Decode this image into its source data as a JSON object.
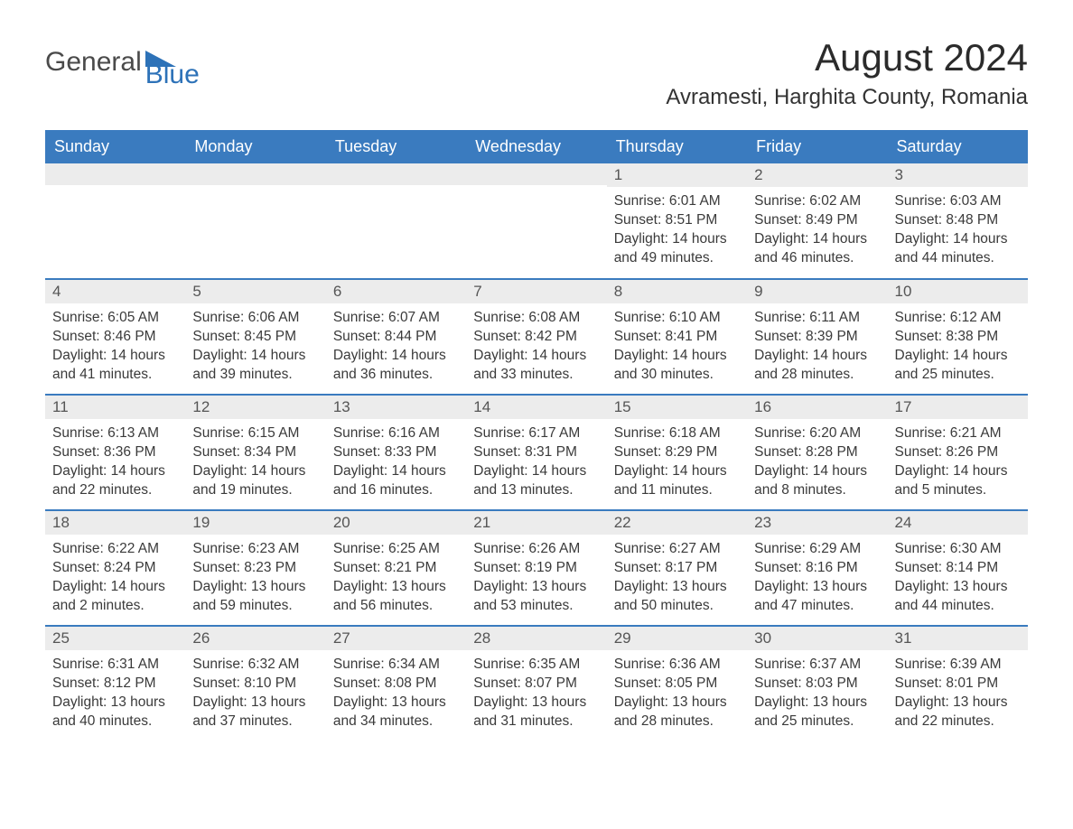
{
  "brand": {
    "word1": "General",
    "word2": "Blue",
    "accent_color": "#2d72b8"
  },
  "title": "August 2024",
  "location": "Avramesti, Harghita County, Romania",
  "colors": {
    "header_bg": "#3a7bbf",
    "header_text": "#ffffff",
    "daynum_bg": "#ececec",
    "row_divider": "#3a7bbf",
    "body_text": "#3a3a3a",
    "page_bg": "#ffffff"
  },
  "layout": {
    "columns": 7,
    "rows": 5,
    "first_weekday_index": 4
  },
  "weekdays": [
    "Sunday",
    "Monday",
    "Tuesday",
    "Wednesday",
    "Thursday",
    "Friday",
    "Saturday"
  ],
  "weeks": [
    [
      {
        "empty": true
      },
      {
        "empty": true
      },
      {
        "empty": true
      },
      {
        "empty": true
      },
      {
        "day": "1",
        "sunrise": "Sunrise: 6:01 AM",
        "sunset": "Sunset: 8:51 PM",
        "daylight": "Daylight: 14 hours and 49 minutes."
      },
      {
        "day": "2",
        "sunrise": "Sunrise: 6:02 AM",
        "sunset": "Sunset: 8:49 PM",
        "daylight": "Daylight: 14 hours and 46 minutes."
      },
      {
        "day": "3",
        "sunrise": "Sunrise: 6:03 AM",
        "sunset": "Sunset: 8:48 PM",
        "daylight": "Daylight: 14 hours and 44 minutes."
      }
    ],
    [
      {
        "day": "4",
        "sunrise": "Sunrise: 6:05 AM",
        "sunset": "Sunset: 8:46 PM",
        "daylight": "Daylight: 14 hours and 41 minutes."
      },
      {
        "day": "5",
        "sunrise": "Sunrise: 6:06 AM",
        "sunset": "Sunset: 8:45 PM",
        "daylight": "Daylight: 14 hours and 39 minutes."
      },
      {
        "day": "6",
        "sunrise": "Sunrise: 6:07 AM",
        "sunset": "Sunset: 8:44 PM",
        "daylight": "Daylight: 14 hours and 36 minutes."
      },
      {
        "day": "7",
        "sunrise": "Sunrise: 6:08 AM",
        "sunset": "Sunset: 8:42 PM",
        "daylight": "Daylight: 14 hours and 33 minutes."
      },
      {
        "day": "8",
        "sunrise": "Sunrise: 6:10 AM",
        "sunset": "Sunset: 8:41 PM",
        "daylight": "Daylight: 14 hours and 30 minutes."
      },
      {
        "day": "9",
        "sunrise": "Sunrise: 6:11 AM",
        "sunset": "Sunset: 8:39 PM",
        "daylight": "Daylight: 14 hours and 28 minutes."
      },
      {
        "day": "10",
        "sunrise": "Sunrise: 6:12 AM",
        "sunset": "Sunset: 8:38 PM",
        "daylight": "Daylight: 14 hours and 25 minutes."
      }
    ],
    [
      {
        "day": "11",
        "sunrise": "Sunrise: 6:13 AM",
        "sunset": "Sunset: 8:36 PM",
        "daylight": "Daylight: 14 hours and 22 minutes."
      },
      {
        "day": "12",
        "sunrise": "Sunrise: 6:15 AM",
        "sunset": "Sunset: 8:34 PM",
        "daylight": "Daylight: 14 hours and 19 minutes."
      },
      {
        "day": "13",
        "sunrise": "Sunrise: 6:16 AM",
        "sunset": "Sunset: 8:33 PM",
        "daylight": "Daylight: 14 hours and 16 minutes."
      },
      {
        "day": "14",
        "sunrise": "Sunrise: 6:17 AM",
        "sunset": "Sunset: 8:31 PM",
        "daylight": "Daylight: 14 hours and 13 minutes."
      },
      {
        "day": "15",
        "sunrise": "Sunrise: 6:18 AM",
        "sunset": "Sunset: 8:29 PM",
        "daylight": "Daylight: 14 hours and 11 minutes."
      },
      {
        "day": "16",
        "sunrise": "Sunrise: 6:20 AM",
        "sunset": "Sunset: 8:28 PM",
        "daylight": "Daylight: 14 hours and 8 minutes."
      },
      {
        "day": "17",
        "sunrise": "Sunrise: 6:21 AM",
        "sunset": "Sunset: 8:26 PM",
        "daylight": "Daylight: 14 hours and 5 minutes."
      }
    ],
    [
      {
        "day": "18",
        "sunrise": "Sunrise: 6:22 AM",
        "sunset": "Sunset: 8:24 PM",
        "daylight": "Daylight: 14 hours and 2 minutes."
      },
      {
        "day": "19",
        "sunrise": "Sunrise: 6:23 AM",
        "sunset": "Sunset: 8:23 PM",
        "daylight": "Daylight: 13 hours and 59 minutes."
      },
      {
        "day": "20",
        "sunrise": "Sunrise: 6:25 AM",
        "sunset": "Sunset: 8:21 PM",
        "daylight": "Daylight: 13 hours and 56 minutes."
      },
      {
        "day": "21",
        "sunrise": "Sunrise: 6:26 AM",
        "sunset": "Sunset: 8:19 PM",
        "daylight": "Daylight: 13 hours and 53 minutes."
      },
      {
        "day": "22",
        "sunrise": "Sunrise: 6:27 AM",
        "sunset": "Sunset: 8:17 PM",
        "daylight": "Daylight: 13 hours and 50 minutes."
      },
      {
        "day": "23",
        "sunrise": "Sunrise: 6:29 AM",
        "sunset": "Sunset: 8:16 PM",
        "daylight": "Daylight: 13 hours and 47 minutes."
      },
      {
        "day": "24",
        "sunrise": "Sunrise: 6:30 AM",
        "sunset": "Sunset: 8:14 PM",
        "daylight": "Daylight: 13 hours and 44 minutes."
      }
    ],
    [
      {
        "day": "25",
        "sunrise": "Sunrise: 6:31 AM",
        "sunset": "Sunset: 8:12 PM",
        "daylight": "Daylight: 13 hours and 40 minutes."
      },
      {
        "day": "26",
        "sunrise": "Sunrise: 6:32 AM",
        "sunset": "Sunset: 8:10 PM",
        "daylight": "Daylight: 13 hours and 37 minutes."
      },
      {
        "day": "27",
        "sunrise": "Sunrise: 6:34 AM",
        "sunset": "Sunset: 8:08 PM",
        "daylight": "Daylight: 13 hours and 34 minutes."
      },
      {
        "day": "28",
        "sunrise": "Sunrise: 6:35 AM",
        "sunset": "Sunset: 8:07 PM",
        "daylight": "Daylight: 13 hours and 31 minutes."
      },
      {
        "day": "29",
        "sunrise": "Sunrise: 6:36 AM",
        "sunset": "Sunset: 8:05 PM",
        "daylight": "Daylight: 13 hours and 28 minutes."
      },
      {
        "day": "30",
        "sunrise": "Sunrise: 6:37 AM",
        "sunset": "Sunset: 8:03 PM",
        "daylight": "Daylight: 13 hours and 25 minutes."
      },
      {
        "day": "31",
        "sunrise": "Sunrise: 6:39 AM",
        "sunset": "Sunset: 8:01 PM",
        "daylight": "Daylight: 13 hours and 22 minutes."
      }
    ]
  ]
}
